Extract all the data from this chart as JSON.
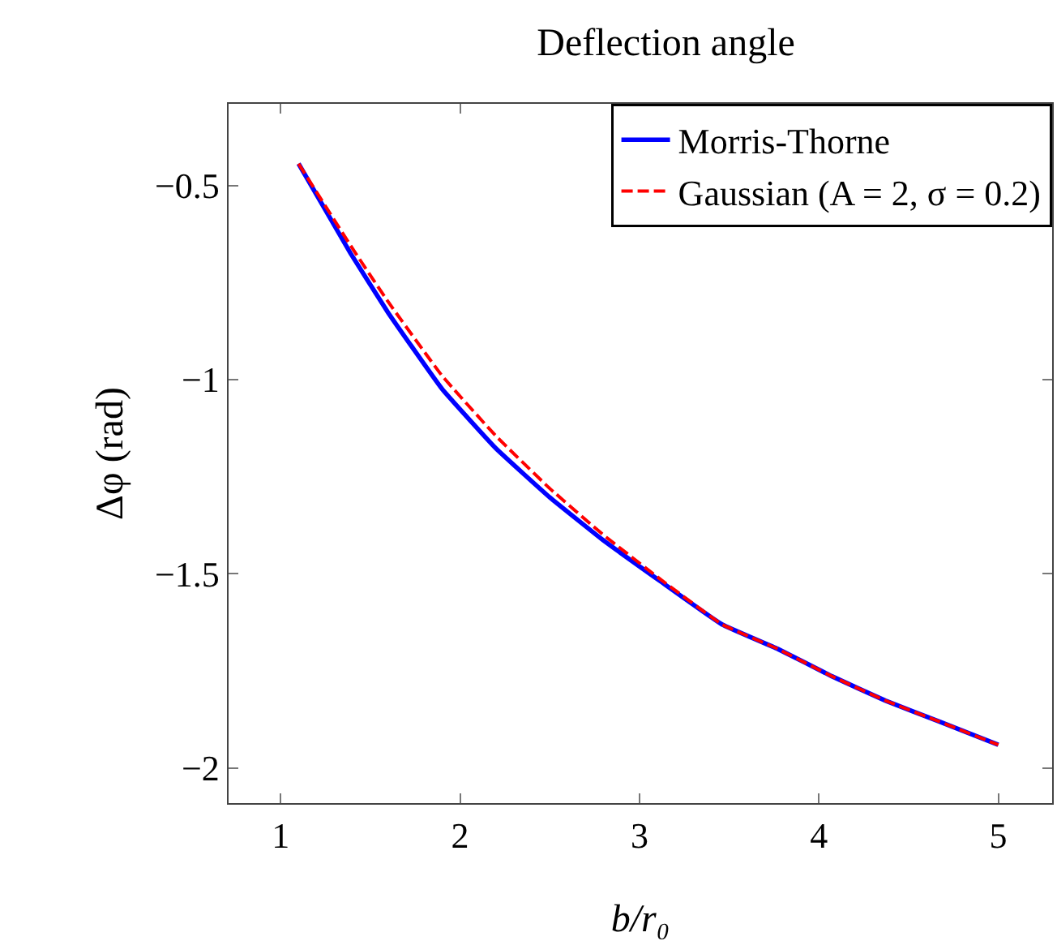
{
  "chart_data": {
    "type": "line",
    "title": "Deflection angle",
    "xlabel": "b/r₀",
    "ylabel": "Δφ (rad)",
    "xlim": [
      0.71,
      5.3
    ],
    "xticks": [
      1,
      2,
      3,
      4,
      5
    ],
    "ylim": [
      -2.09,
      -0.29
    ],
    "yticks": [
      -0.5,
      -1,
      -1.5,
      -2
    ],
    "grid": false,
    "legend": "top right",
    "marker": "none",
    "series": [
      {
        "name": "Morris-Thorne",
        "color": "#0000ff",
        "line_style": "solid",
        "x": [
          1.1,
          1.39,
          1.6,
          1.9,
          2.2,
          2.5,
          2.8,
          3.12,
          3.46,
          3.77,
          4.07,
          4.37,
          4.67,
          5
        ],
        "values": [
          -0.444,
          -0.675,
          -0.828,
          -1.024,
          -1.177,
          -1.303,
          -1.414,
          -1.52,
          -1.63,
          -1.693,
          -1.763,
          -1.826,
          -1.88,
          -1.94
        ]
      },
      {
        "name": "Gaussian (A = 2, σ = 0.2)",
        "color": "#ff0000",
        "line_style": "dashed",
        "x": [
          1.1,
          1.39,
          1.6,
          1.9,
          2.2,
          2.5,
          2.8,
          3.12,
          3.46,
          3.77,
          4.07,
          4.37,
          4.67,
          5
        ],
        "values": [
          -0.444,
          -0.655,
          -0.8,
          -0.99,
          -1.145,
          -1.28,
          -1.4,
          -1.515,
          -1.63,
          -1.693,
          -1.763,
          -1.826,
          -1.88,
          -1.94
        ]
      }
    ]
  }
}
